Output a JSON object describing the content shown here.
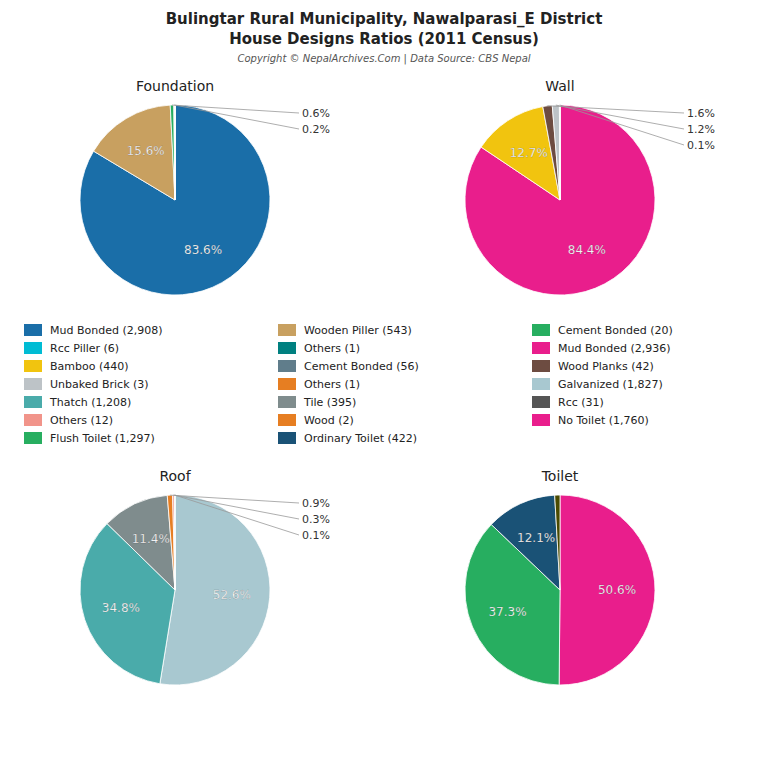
{
  "chart_data": {
    "type": "pie",
    "title": "Bulingtar Rural Municipality, Nawalparasi_E District",
    "subtitle": "House Designs Ratios (2011 Census)",
    "annotations": [
      "Copyright © NepalArchives.Com | Data Source: CBS Nepal"
    ],
    "series": [
      {
        "name": "Foundation",
        "values": [
          83.6,
          15.6,
          0.6,
          0.2,
          0.0,
          0.0,
          0.0
        ],
        "colors": [
          "#1a6ea8",
          "#c8a060",
          "#27ae60",
          "#607d8b",
          "#bdc3c7",
          "#008080",
          "#cccccc"
        ],
        "value_labels": [
          "83.6%",
          "15.6%",
          "0.6%",
          "0.2%",
          null,
          null,
          null
        ]
      },
      {
        "name": "Wall",
        "values": [
          84.4,
          12.7,
          1.6,
          1.2,
          0.1,
          0.0,
          0.0
        ],
        "colors": [
          "#e91e8c",
          "#f1c40f",
          "#6d4c41",
          "#bdc3c7",
          "#555555",
          "#27ae60",
          "#008080"
        ],
        "value_labels": [
          "84.4%",
          "12.7%",
          "1.6%",
          "1.2%",
          "0.1%",
          null,
          null
        ]
      },
      {
        "name": "Roof",
        "values": [
          52.6,
          34.8,
          11.4,
          0.9,
          0.3,
          0.1,
          0.0
        ],
        "colors": [
          "#a8c8d0",
          "#4aabaa",
          "#7f8c8d",
          "#e67e22",
          "#f1948a",
          "#27ae60",
          "#008080"
        ],
        "value_labels": [
          "52.6%",
          "34.8%",
          "11.4%",
          "0.9%",
          "0.3%",
          "0.1%",
          null
        ]
      },
      {
        "name": "Toilet",
        "values": [
          50.6,
          37.3,
          12.1,
          0.9
        ],
        "colors": [
          "#e91e8c",
          "#27ae60",
          "#1a5276",
          "#4a4a00"
        ],
        "value_labels": [
          "50.6%",
          "37.3%",
          "12.1%",
          null
        ]
      }
    ],
    "legend_entries": [
      {
        "name": "Mud Bonded (2,908)",
        "color": "#1a6ea8"
      },
      {
        "name": "Rcc Piller (6)",
        "color": "#00bcd4"
      },
      {
        "name": "Bamboo (440)",
        "color": "#f1c40f"
      },
      {
        "name": "Unbaked Brick (3)",
        "color": "#bdc3c7"
      },
      {
        "name": "Thatch (1,208)",
        "color": "#4aabaa"
      },
      {
        "name": "Others (12)",
        "color": "#f1948a"
      },
      {
        "name": "Flush Toilet (1,297)",
        "color": "#27ae60"
      },
      {
        "name": "Wooden Piller (543)",
        "color": "#c8a060"
      },
      {
        "name": "Others (1)",
        "color": "#008080"
      },
      {
        "name": "Cement Bonded (56)",
        "color": "#607d8b"
      },
      {
        "name": "Others (1)",
        "color": "#e67e22"
      },
      {
        "name": "Tile (395)",
        "color": "#7f8c8d"
      },
      {
        "name": "Wood (2)",
        "color": "#e67e22"
      },
      {
        "name": "Ordinary Toilet (422)",
        "color": "#1a5276"
      },
      {
        "name": "Cement Bonded (20)",
        "color": "#27ae60"
      },
      {
        "name": "Mud Bonded (2,936)",
        "color": "#e91e8c"
      },
      {
        "name": "Wood Planks (42)",
        "color": "#6d4c41"
      },
      {
        "name": "Galvanized (1,827)",
        "color": "#a8c8d0"
      },
      {
        "name": "Rcc (31)",
        "color": "#555555"
      },
      {
        "name": "No Toilet (1,760)",
        "color": "#e91e8c"
      }
    ]
  }
}
